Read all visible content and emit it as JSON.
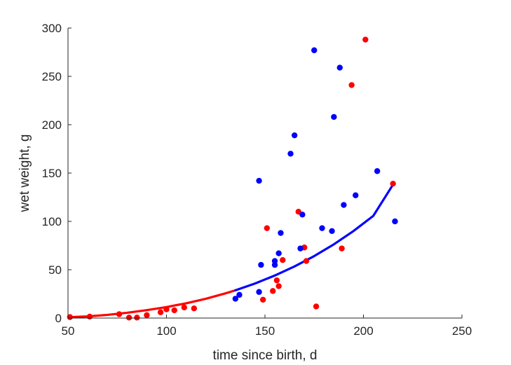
{
  "chart_data": {
    "type": "scatter",
    "title": "",
    "xlabel": "time since birth, d",
    "ylabel": "wet weight, g",
    "xlim": [
      50,
      250
    ],
    "ylim": [
      0,
      300
    ],
    "xticks": [
      50,
      100,
      150,
      200,
      250
    ],
    "yticks": [
      0,
      50,
      100,
      150,
      200,
      250,
      300
    ],
    "grid": false,
    "axes_box": "left-bottom only",
    "series": [
      {
        "color": "#ff0000",
        "kind": "points",
        "x": [
          51,
          61,
          76,
          81,
          85,
          90,
          97,
          100,
          104,
          109,
          114,
          149,
          151,
          154,
          156,
          157,
          159,
          167,
          170,
          171,
          176,
          189,
          194,
          201,
          215
        ],
        "y": [
          1,
          1.5,
          4,
          0.5,
          0.5,
          3,
          6,
          9,
          8,
          11,
          10,
          19,
          93,
          28,
          39,
          33,
          60,
          110,
          73,
          59,
          12,
          72,
          241,
          288,
          139
        ]
      },
      {
        "color": "#0000ff",
        "kind": "points",
        "x": [
          135,
          137,
          147,
          147,
          148,
          155,
          155,
          157,
          158,
          163,
          165,
          168,
          169,
          175,
          179,
          184,
          185,
          188,
          190,
          196,
          207,
          216
        ],
        "y": [
          20,
          24,
          27,
          142,
          55,
          55,
          59,
          67,
          88,
          170,
          189,
          72,
          107,
          277,
          93,
          90,
          208,
          259,
          117,
          127,
          152,
          100
        ]
      },
      {
        "color": "#ff0000",
        "kind": "curve",
        "x": [
          51,
          60,
          70,
          80,
          90,
          100,
          110,
          120,
          130,
          135
        ],
        "y": [
          0.9,
          1.7,
          3.3,
          5.5,
          8.2,
          11.4,
          15.3,
          20.0,
          25.6,
          28.7
        ]
      },
      {
        "color": "#0000ff",
        "kind": "curve",
        "x": [
          135,
          145,
          155,
          165,
          175,
          185,
          195,
          205,
          215
        ],
        "y": [
          28.7,
          35.8,
          44.0,
          53.4,
          64.1,
          76.3,
          90.1,
          105.7,
          138.0
        ]
      }
    ]
  }
}
